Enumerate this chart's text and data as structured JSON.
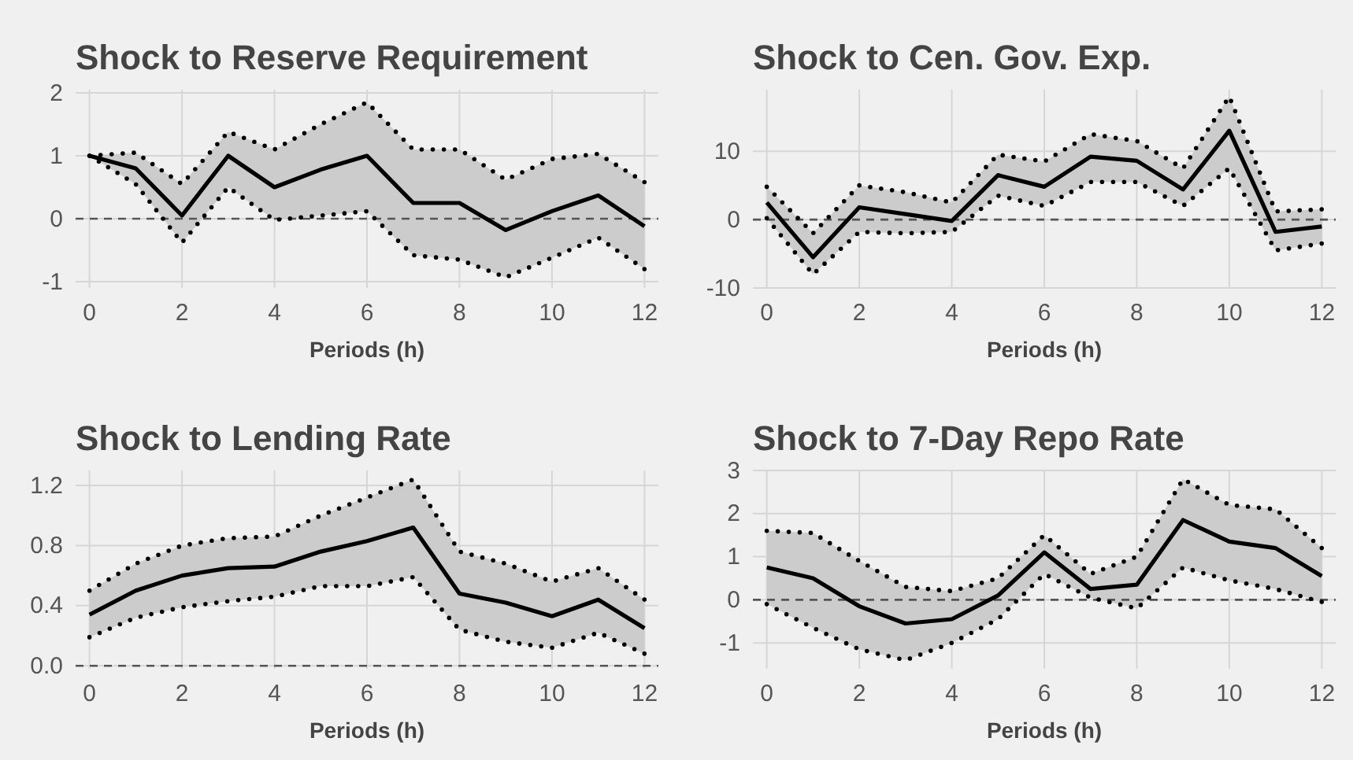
{
  "chart_data": [
    {
      "type": "line",
      "title": "Shock to Reserve Requirement",
      "xlabel": "Periods (h)",
      "x": [
        0,
        1,
        2,
        3,
        4,
        5,
        6,
        7,
        8,
        9,
        10,
        11,
        12
      ],
      "xlim": [
        -0.3,
        12.3
      ],
      "xticks": [
        0,
        2,
        4,
        6,
        8,
        10,
        12
      ],
      "ylim": [
        -1.1,
        2.05
      ],
      "yticks": [
        -1,
        0,
        1,
        2
      ],
      "grid": true,
      "ref_lines": [
        {
          "axis": "y",
          "value": 0,
          "line_style": "dashed",
          "color": "#555555"
        }
      ],
      "series": [
        {
          "color": "#000000",
          "line_style": "solid",
          "values": [
            1.0,
            0.8,
            0.05,
            1.0,
            0.5,
            0.78,
            1.0,
            0.25,
            0.25,
            -0.18,
            0.12,
            0.37,
            -0.12
          ],
          "lower": [
            1.0,
            0.55,
            -0.38,
            0.5,
            -0.02,
            0.05,
            0.12,
            -0.58,
            -0.65,
            -0.93,
            -0.62,
            -0.3,
            -0.8
          ],
          "upper": [
            1.0,
            1.05,
            0.55,
            1.38,
            1.1,
            1.5,
            1.85,
            1.1,
            1.1,
            0.62,
            0.95,
            1.03,
            0.58
          ]
        },
        {
          "color": "#000000",
          "line_style": "dotted",
          "values": [
            1.0,
            0.55,
            -0.38,
            0.5,
            -0.02,
            0.05,
            0.12,
            -0.58,
            -0.65,
            -0.93,
            -0.62,
            -0.3,
            -0.8
          ]
        },
        {
          "color": "#000000",
          "line_style": "dotted",
          "values": [
            1.0,
            1.05,
            0.55,
            1.38,
            1.1,
            1.5,
            1.85,
            1.1,
            1.1,
            0.62,
            0.95,
            1.03,
            0.58
          ]
        }
      ]
    },
    {
      "type": "line",
      "title": "Shock to Cen. Gov. Exp.",
      "xlabel": "Periods (h)",
      "x": [
        0,
        1,
        2,
        3,
        4,
        5,
        6,
        7,
        8,
        9,
        10,
        11,
        12
      ],
      "xlim": [
        -0.3,
        12.3
      ],
      "xticks": [
        0,
        2,
        4,
        6,
        8,
        10,
        12
      ],
      "ylim": [
        -10,
        19
      ],
      "yticks": [
        -10,
        0,
        10
      ],
      "grid": true,
      "ref_lines": [
        {
          "axis": "y",
          "value": 0,
          "line_style": "dashed",
          "color": "#555555"
        }
      ],
      "series": [
        {
          "color": "#000000",
          "line_style": "solid",
          "values": [
            2.5,
            -5.5,
            1.8,
            0.8,
            -0.2,
            6.5,
            4.8,
            9.2,
            8.6,
            4.4,
            13,
            -1.8,
            -1.0
          ],
          "lower": [
            0.2,
            -8,
            -1.8,
            -2,
            -1.8,
            3.5,
            2,
            5.5,
            5.5,
            2,
            7.5,
            -4.5,
            -3.5
          ],
          "upper": [
            4.8,
            -2,
            5,
            4,
            2.5,
            9.5,
            8.5,
            12.5,
            11.5,
            7.5,
            18,
            1.2,
            1.5
          ]
        },
        {
          "color": "#000000",
          "line_style": "dotted",
          "values": [
            0.2,
            -8,
            -1.8,
            -2,
            -1.8,
            3.5,
            2,
            5.5,
            5.5,
            2,
            7.5,
            -4.5,
            -3.5
          ]
        },
        {
          "color": "#000000",
          "line_style": "dotted",
          "values": [
            4.8,
            -2,
            5,
            4,
            2.5,
            9.5,
            8.5,
            12.5,
            11.5,
            7.5,
            18,
            1.2,
            1.5
          ]
        }
      ]
    },
    {
      "type": "line",
      "title": "Shock to Lending Rate",
      "xlabel": "Periods (h)",
      "x": [
        0,
        1,
        2,
        3,
        4,
        5,
        6,
        7,
        8,
        9,
        10,
        11,
        12
      ],
      "xlim": [
        -0.3,
        12.3
      ],
      "xticks": [
        0,
        2,
        4,
        6,
        8,
        10,
        12
      ],
      "ylim": [
        -0.02,
        1.3
      ],
      "yticks": [
        {
          "value": 0,
          "label": "0.0"
        },
        0.4,
        0.8,
        1.2
      ],
      "grid": true,
      "ref_lines": [
        {
          "axis": "y",
          "value": 0,
          "line_style": "dashed",
          "color": "#555555"
        }
      ],
      "series": [
        {
          "color": "#000000",
          "line_style": "solid",
          "values": [
            0.34,
            0.5,
            0.6,
            0.65,
            0.66,
            0.76,
            0.83,
            0.92,
            0.48,
            0.42,
            0.33,
            0.44,
            0.25
          ],
          "lower": [
            0.19,
            0.32,
            0.39,
            0.43,
            0.46,
            0.53,
            0.53,
            0.59,
            0.24,
            0.16,
            0.12,
            0.22,
            0.08
          ],
          "upper": [
            0.5,
            0.68,
            0.8,
            0.85,
            0.86,
            1.0,
            1.12,
            1.24,
            0.76,
            0.68,
            0.56,
            0.65,
            0.44
          ]
        },
        {
          "color": "#000000",
          "line_style": "dotted",
          "values": [
            0.19,
            0.32,
            0.39,
            0.43,
            0.46,
            0.53,
            0.53,
            0.59,
            0.24,
            0.16,
            0.12,
            0.22,
            0.08
          ]
        },
        {
          "color": "#000000",
          "line_style": "dotted",
          "values": [
            0.5,
            0.68,
            0.8,
            0.85,
            0.86,
            1.0,
            1.12,
            1.24,
            0.76,
            0.68,
            0.56,
            0.65,
            0.44
          ]
        }
      ]
    },
    {
      "type": "line",
      "title": "Shock to 7-Day Repo Rate",
      "xlabel": "Periods (h)",
      "x": [
        0,
        1,
        2,
        3,
        4,
        5,
        6,
        7,
        8,
        9,
        10,
        11,
        12
      ],
      "xlim": [
        -0.3,
        12.3
      ],
      "xticks": [
        0,
        2,
        4,
        6,
        8,
        10,
        12
      ],
      "ylim": [
        -1.6,
        3
      ],
      "yticks": [
        -1,
        0,
        1,
        2,
        3
      ],
      "grid": true,
      "ref_lines": [
        {
          "axis": "y",
          "value": 0,
          "line_style": "dashed",
          "color": "#555555"
        }
      ],
      "series": [
        {
          "color": "#000000",
          "line_style": "solid",
          "values": [
            0.75,
            0.5,
            -0.15,
            -0.55,
            -0.45,
            0.1,
            1.1,
            0.25,
            0.35,
            1.85,
            1.35,
            1.2,
            0.55
          ],
          "lower": [
            -0.1,
            -0.65,
            -1.15,
            -1.4,
            -1.0,
            -0.45,
            0.6,
            0.05,
            -0.2,
            0.75,
            0.45,
            0.25,
            -0.05
          ],
          "upper": [
            1.6,
            1.55,
            0.9,
            0.3,
            0.2,
            0.5,
            1.5,
            0.6,
            1.0,
            2.8,
            2.2,
            2.1,
            1.2
          ]
        },
        {
          "color": "#000000",
          "line_style": "dotted",
          "values": [
            -0.1,
            -0.65,
            -1.15,
            -1.4,
            -1.0,
            -0.45,
            0.6,
            0.05,
            -0.2,
            0.75,
            0.45,
            0.25,
            -0.05
          ]
        },
        {
          "color": "#000000",
          "line_style": "dotted",
          "values": [
            1.6,
            1.55,
            0.9,
            0.3,
            0.2,
            0.5,
            1.5,
            0.6,
            1.0,
            2.8,
            2.2,
            2.1,
            1.2
          ]
        }
      ]
    }
  ]
}
